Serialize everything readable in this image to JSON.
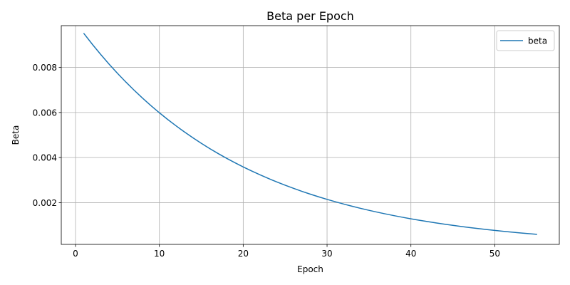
{
  "chart_data": {
    "type": "line",
    "title": "Beta per Epoch",
    "xlabel": "Epoch",
    "ylabel": "Beta",
    "xlim": [
      -1.7,
      57.7
    ],
    "ylim": [
      0.00015,
      0.00985
    ],
    "x_ticks": [
      0,
      10,
      20,
      30,
      40,
      50
    ],
    "y_ticks": [
      0.002,
      0.004,
      0.006,
      0.008
    ],
    "x_tick_labels": [
      "0",
      "10",
      "20",
      "30",
      "40",
      "50"
    ],
    "y_tick_labels": [
      "0.002",
      "0.004",
      "0.006",
      "0.008"
    ],
    "grid": true,
    "legend_position": "top-right",
    "series": [
      {
        "name": "beta",
        "color": "#1f77b4",
        "x": [
          1,
          2,
          3,
          4,
          5,
          6,
          7,
          8,
          9,
          10,
          11,
          12,
          13,
          14,
          15,
          16,
          17,
          18,
          19,
          20,
          21,
          22,
          23,
          24,
          25,
          26,
          27,
          28,
          29,
          30,
          31,
          32,
          33,
          34,
          35,
          36,
          37,
          38,
          39,
          40,
          41,
          42,
          43,
          44,
          45,
          46,
          47,
          48,
          49,
          50,
          51,
          52,
          53,
          54,
          55
        ],
        "y": [
          0.0095,
          0.009025,
          0.008574,
          0.008145,
          0.007738,
          0.007351,
          0.006983,
          0.006634,
          0.006302,
          0.005987,
          0.005688,
          0.005404,
          0.005133,
          0.004877,
          0.004633,
          0.004401,
          0.004181,
          0.003972,
          0.003774,
          0.003585,
          0.003406,
          0.003235,
          0.003074,
          0.00292,
          0.002774,
          0.002635,
          0.002503,
          0.002378,
          0.002259,
          0.002146,
          0.002039,
          0.001937,
          0.00184,
          0.001748,
          0.001661,
          0.001578,
          0.001499,
          0.001424,
          0.001353,
          0.001285,
          0.001221,
          0.00116,
          0.001102,
          0.001047,
          0.000995,
          0.000945,
          0.000898,
          0.000853,
          0.00081,
          0.00077,
          0.000731,
          0.000695,
          0.00066,
          0.000627,
          0.000596
        ]
      }
    ]
  }
}
